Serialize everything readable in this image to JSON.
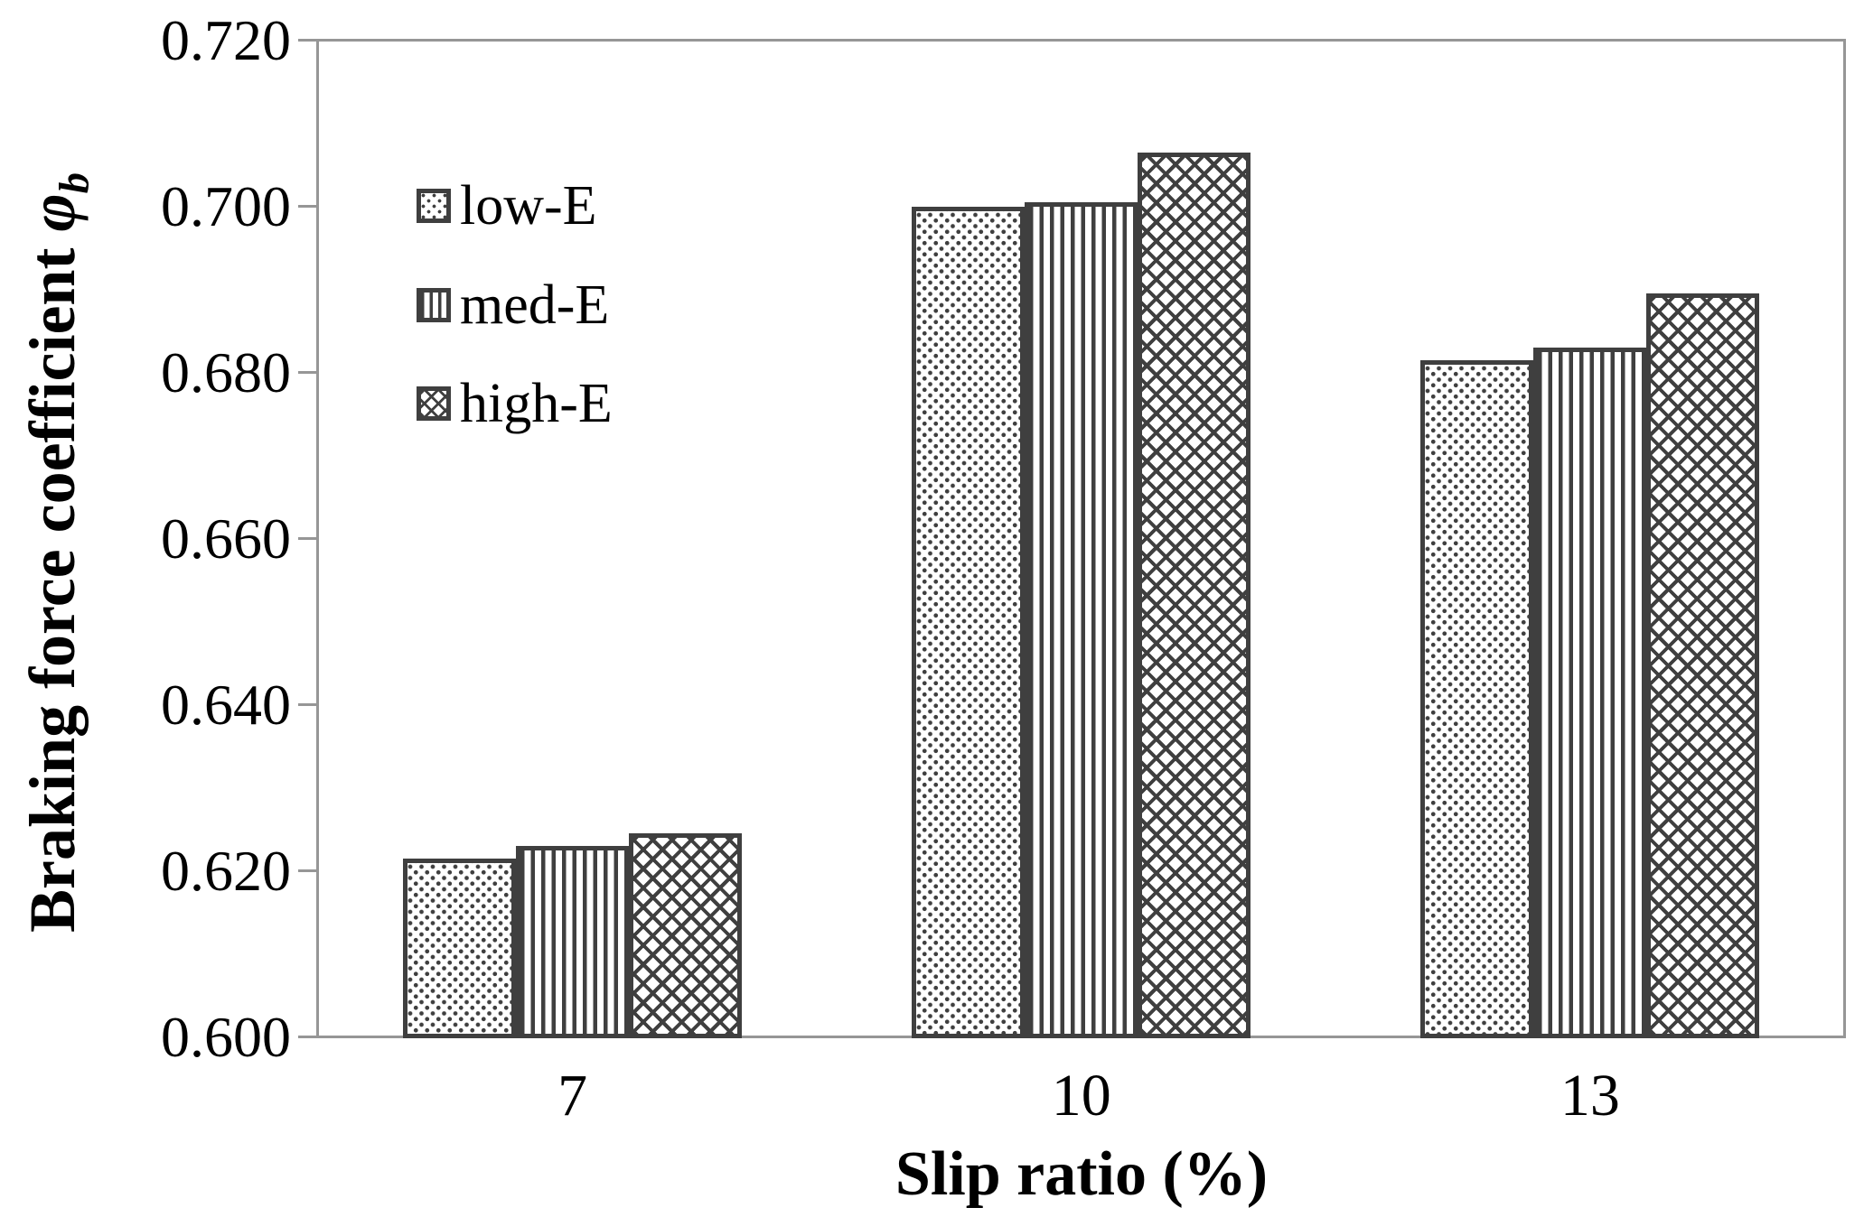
{
  "chart_data": {
    "type": "bar",
    "title": "",
    "categories": [
      "7",
      "10",
      "13"
    ],
    "series": [
      {
        "name": "low-E",
        "pattern": "dots",
        "values": [
          0.6215,
          0.7,
          0.6815
        ]
      },
      {
        "name": "med-E",
        "pattern": "vlines",
        "values": [
          0.623,
          0.7005,
          0.683
        ]
      },
      {
        "name": "high-E",
        "pattern": "cross",
        "values": [
          0.6245,
          0.7065,
          0.6895
        ]
      }
    ],
    "xlabel": "Slip ratio (%)",
    "ylabel": "Braking force coefficient φb",
    "ylabel_parts": {
      "main": "Braking force coefficient ",
      "symbol": "φ",
      "subscript": "b"
    },
    "ylim": [
      0.6,
      0.72
    ],
    "ytick_step": 0.02,
    "yticks": [
      "0.720",
      "0.700",
      "0.680",
      "0.660",
      "0.640",
      "0.620",
      "0.600"
    ],
    "legend_position": "inside-top-left",
    "grid": false
  },
  "colors": {
    "pattern_ink": "#3f3f3f",
    "axis": "#969696",
    "text": "#000000",
    "background": "#ffffff",
    "bar_fill": "#ffffff"
  }
}
